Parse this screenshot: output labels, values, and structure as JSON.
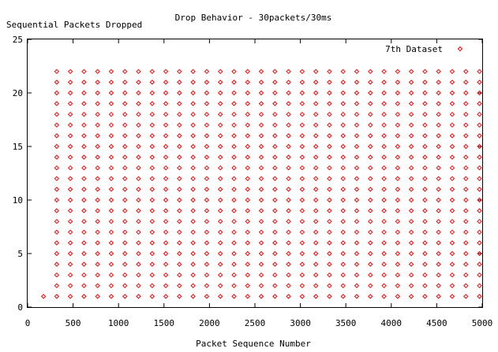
{
  "chart_data": {
    "type": "scatter",
    "title": "Drop Behavior - 30packets/30ms",
    "xlabel": "Packet Sequence Number",
    "ylabel": "Sequential Packets Dropped",
    "xlim": [
      0,
      5000
    ],
    "ylim": [
      0,
      25
    ],
    "x_ticks": [
      0,
      500,
      1000,
      1500,
      2000,
      2500,
      3000,
      3500,
      4000,
      4500,
      5000
    ],
    "y_ticks": [
      0,
      5,
      10,
      15,
      20,
      25
    ],
    "x_tick_labels": [
      "0",
      "500",
      "1000",
      "1500",
      "2000",
      "2500",
      "3000",
      "3500",
      "4000",
      "4500",
      "5000"
    ],
    "y_tick_labels": [
      "0",
      "5",
      "10",
      "15",
      "20",
      "25"
    ],
    "grid": false,
    "legend": {
      "position": "top-right",
      "entries": [
        "7th Dataset"
      ]
    },
    "series": [
      {
        "name": "7th Dataset",
        "color": "#ff0000",
        "marker": "diamond",
        "pattern": "For each column x in x_columns, dropped-packet counts 1 through y_max are plotted, plus an isolated point.",
        "x_columns": [
          320,
          470,
          620,
          770,
          920,
          1070,
          1220,
          1370,
          1520,
          1670,
          1820,
          1970,
          2120,
          2270,
          2420,
          2570,
          2720,
          2870,
          3020,
          3170,
          3320,
          3470,
          3620,
          3770,
          3920,
          4070,
          4220,
          4370,
          4520,
          4670,
          4820,
          4970
        ],
        "y_max": 22,
        "extra_points": [
          [
            175,
            1
          ]
        ]
      }
    ]
  }
}
